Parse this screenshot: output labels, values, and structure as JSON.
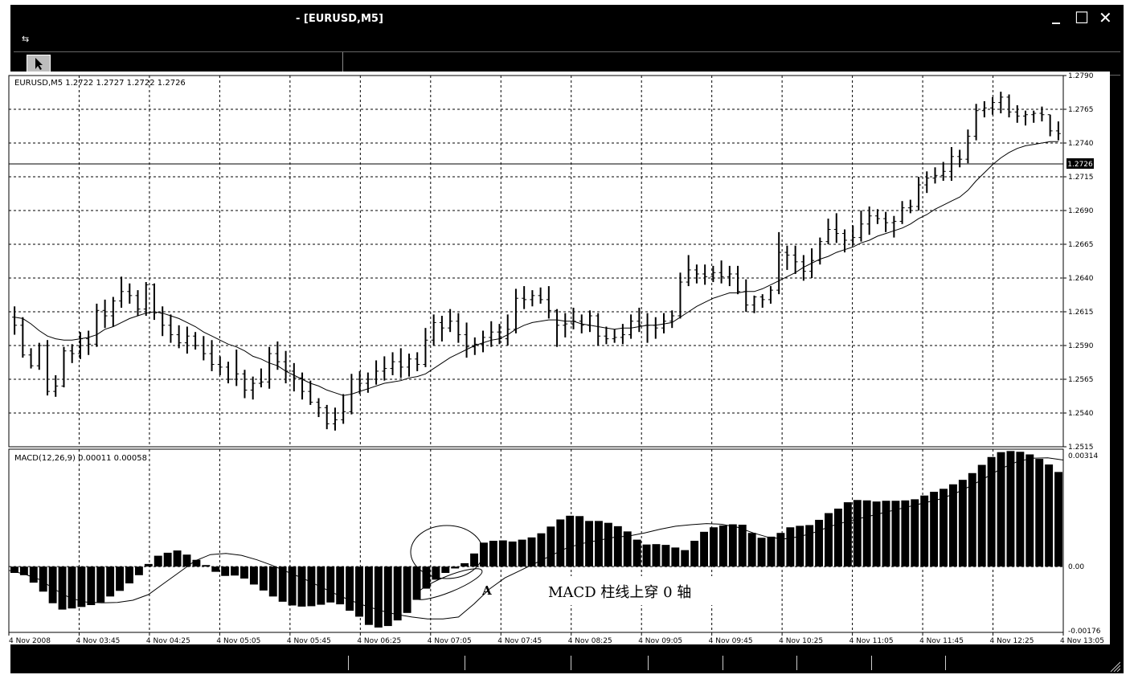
{
  "window": {
    "title": "- [EURUSD,M5]",
    "controls": {
      "minimize": "_",
      "maximize": "☐",
      "close": "✕"
    }
  },
  "price_panel": {
    "label": "EURUSD,M5  1.2722 1.2727 1.2722 1.2726",
    "current_price": "1.2726",
    "y_ticks": [
      "1.2790",
      "1.2765",
      "1.2740",
      "1.2715",
      "1.2690",
      "1.2665",
      "1.2640",
      "1.2615",
      "1.2590",
      "1.2565",
      "1.2540",
      "1.2515"
    ]
  },
  "macd_panel": {
    "label": "MACD(12,26,9) 0.00011 0.00058",
    "y_ticks": [
      "0.00314",
      "0.00",
      "-0.00176"
    ]
  },
  "x_ticks": [
    "4 Nov 2008",
    "4 Nov 03:45",
    "4 Nov 04:25",
    "4 Nov 05:05",
    "4 Nov 05:45",
    "4 Nov 06:25",
    "4 Nov 07:05",
    "4 Nov 07:45",
    "4 Nov 08:25",
    "4 Nov 09:05",
    "4 Nov 09:45",
    "4 Nov 10:25",
    "4 Nov 11:05",
    "4 Nov 11:45",
    "4 Nov 12:25",
    "4 Nov 13:05"
  ],
  "annotation": {
    "marker": "A",
    "text": "MACD 柱线上穿 0 轴"
  },
  "chart_data": [
    {
      "type": "ohlc",
      "title": "EURUSD,M5",
      "ylim": [
        1.2515,
        1.279
      ],
      "bars": [
        [
          1.2611,
          1.2619,
          1.2598,
          1.2605
        ],
        [
          1.2605,
          1.2611,
          1.2581,
          1.2583
        ],
        [
          1.2583,
          1.2588,
          1.2573,
          1.2575
        ],
        [
          1.2575,
          1.2592,
          1.2572,
          1.259
        ],
        [
          1.259,
          1.2594,
          1.2553,
          1.2556
        ],
        [
          1.2556,
          1.2568,
          1.2552,
          1.256
        ],
        [
          1.256,
          1.2589,
          1.2559,
          1.2586
        ],
        [
          1.2586,
          1.2591,
          1.2577,
          1.2584
        ],
        [
          1.2584,
          1.26,
          1.258,
          1.2595
        ],
        [
          1.2595,
          1.2601,
          1.2583,
          1.2591
        ],
        [
          1.2591,
          1.2621,
          1.2589,
          1.2616
        ],
        [
          1.2616,
          1.2624,
          1.2603,
          1.2612
        ],
        [
          1.2612,
          1.2626,
          1.2604,
          1.2623
        ],
        [
          1.2623,
          1.2641,
          1.2618,
          1.263
        ],
        [
          1.263,
          1.2636,
          1.2621,
          1.2627
        ],
        [
          1.2627,
          1.2631,
          1.2612,
          1.2617
        ],
        [
          1.2617,
          1.2637,
          1.2612,
          1.2635
        ],
        [
          1.2635,
          1.2636,
          1.2609,
          1.2614
        ],
        [
          1.2614,
          1.2619,
          1.2597,
          1.2605
        ],
        [
          1.2605,
          1.2613,
          1.2592,
          1.2598
        ],
        [
          1.2598,
          1.2605,
          1.2588,
          1.2592
        ],
        [
          1.2592,
          1.2604,
          1.2584,
          1.2597
        ],
        [
          1.2597,
          1.26,
          1.2587,
          1.259
        ],
        [
          1.259,
          1.2597,
          1.2579,
          1.2584
        ],
        [
          1.2584,
          1.2594,
          1.2571,
          1.2576
        ],
        [
          1.2576,
          1.2582,
          1.2568,
          1.2574
        ],
        [
          1.2574,
          1.2578,
          1.2562,
          1.2565
        ],
        [
          1.2565,
          1.2587,
          1.256,
          1.2569
        ],
        [
          1.2569,
          1.2572,
          1.2551,
          1.2557
        ],
        [
          1.2557,
          1.2567,
          1.255,
          1.2562
        ],
        [
          1.2562,
          1.2573,
          1.2559,
          1.2563
        ],
        [
          1.2563,
          1.2589,
          1.2558,
          1.2584
        ],
        [
          1.2584,
          1.2593,
          1.2572,
          1.2578
        ],
        [
          1.2578,
          1.2586,
          1.2562,
          1.2571
        ],
        [
          1.2571,
          1.2577,
          1.2556,
          1.2566
        ],
        [
          1.2566,
          1.257,
          1.255,
          1.2556
        ],
        [
          1.2556,
          1.2564,
          1.2546,
          1.2548
        ],
        [
          1.2548,
          1.2551,
          1.2537,
          1.2544
        ],
        [
          1.2544,
          1.2546,
          1.2528,
          1.2532
        ],
        [
          1.2532,
          1.2544,
          1.2527,
          1.2535
        ],
        [
          1.2535,
          1.2554,
          1.2532,
          1.2541
        ],
        [
          1.2541,
          1.2569,
          1.2539,
          1.2565
        ],
        [
          1.2565,
          1.2571,
          1.2554,
          1.2562
        ],
        [
          1.2562,
          1.257,
          1.2555,
          1.2565
        ],
        [
          1.2565,
          1.2579,
          1.2561,
          1.2571
        ],
        [
          1.2571,
          1.2582,
          1.2564,
          1.2573
        ],
        [
          1.2573,
          1.2585,
          1.2568,
          1.2578
        ],
        [
          1.2578,
          1.2588,
          1.2566,
          1.2574
        ],
        [
          1.2574,
          1.2584,
          1.2567,
          1.258
        ],
        [
          1.258,
          1.2585,
          1.2571,
          1.2576
        ],
        [
          1.2576,
          1.2603,
          1.2574,
          1.2594
        ],
        [
          1.2594,
          1.2613,
          1.259,
          1.2607
        ],
        [
          1.2607,
          1.2612,
          1.2593,
          1.2603
        ],
        [
          1.2603,
          1.2617,
          1.26,
          1.2608
        ],
        [
          1.2608,
          1.2614,
          1.2592,
          1.2598
        ],
        [
          1.2598,
          1.2607,
          1.2581,
          1.2589
        ],
        [
          1.2589,
          1.2596,
          1.2583,
          1.2591
        ],
        [
          1.2591,
          1.2601,
          1.2585,
          1.2596
        ],
        [
          1.2596,
          1.2608,
          1.2589,
          1.26
        ],
        [
          1.26,
          1.2606,
          1.2591,
          1.2595
        ],
        [
          1.2595,
          1.2613,
          1.259,
          1.2602
        ],
        [
          1.2602,
          1.2632,
          1.2599,
          1.2625
        ],
        [
          1.2625,
          1.2634,
          1.2617,
          1.2624
        ],
        [
          1.2624,
          1.2631,
          1.2619,
          1.2627
        ],
        [
          1.2627,
          1.2633,
          1.2621,
          1.2624
        ],
        [
          1.2624,
          1.2634,
          1.261,
          1.2616
        ],
        [
          1.2616,
          1.2617,
          1.2589,
          1.2605
        ],
        [
          1.2605,
          1.2614,
          1.2596,
          1.2606
        ],
        [
          1.2606,
          1.2618,
          1.2602,
          1.2608
        ],
        [
          1.2608,
          1.2613,
          1.2599,
          1.2605
        ],
        [
          1.2605,
          1.2616,
          1.26,
          1.2612
        ],
        [
          1.2612,
          1.2614,
          1.259,
          1.2597
        ],
        [
          1.2597,
          1.2604,
          1.2591,
          1.2595
        ],
        [
          1.2595,
          1.2602,
          1.2592,
          1.2596
        ],
        [
          1.2596,
          1.2606,
          1.2591,
          1.2598
        ],
        [
          1.2598,
          1.2613,
          1.2595,
          1.2608
        ],
        [
          1.2608,
          1.2618,
          1.26,
          1.2605
        ],
        [
          1.2605,
          1.2614,
          1.2592,
          1.2605
        ],
        [
          1.2605,
          1.2611,
          1.2595,
          1.2603
        ],
        [
          1.2603,
          1.2614,
          1.2599,
          1.2608
        ],
        [
          1.2608,
          1.2616,
          1.2603,
          1.2612
        ],
        [
          1.2612,
          1.2644,
          1.261,
          1.2637
        ],
        [
          1.2637,
          1.2657,
          1.2634,
          1.2646
        ],
        [
          1.2646,
          1.265,
          1.2636,
          1.2643
        ],
        [
          1.2643,
          1.265,
          1.2635,
          1.2641
        ],
        [
          1.2641,
          1.2649,
          1.2637,
          1.2644
        ],
        [
          1.2644,
          1.2653,
          1.2636,
          1.2641
        ],
        [
          1.2641,
          1.2649,
          1.2634,
          1.2643
        ],
        [
          1.2643,
          1.2649,
          1.2628,
          1.263
        ],
        [
          1.263,
          1.2639,
          1.2615,
          1.262
        ],
        [
          1.262,
          1.2627,
          1.2614,
          1.2626
        ],
        [
          1.2626,
          1.2628,
          1.2618,
          1.2624
        ],
        [
          1.2624,
          1.2634,
          1.2621,
          1.2631
        ],
        [
          1.2631,
          1.2674,
          1.2628,
          1.2659
        ],
        [
          1.2659,
          1.2664,
          1.2646,
          1.2657
        ],
        [
          1.2657,
          1.2664,
          1.2643,
          1.2652
        ],
        [
          1.2652,
          1.2657,
          1.2638,
          1.2645
        ],
        [
          1.2645,
          1.2662,
          1.264,
          1.2653
        ],
        [
          1.2653,
          1.267,
          1.265,
          1.2667
        ],
        [
          1.2667,
          1.2684,
          1.2665,
          1.2676
        ],
        [
          1.2676,
          1.2688,
          1.2666,
          1.2673
        ],
        [
          1.2673,
          1.2676,
          1.2659,
          1.2668
        ],
        [
          1.2668,
          1.2679,
          1.2664,
          1.267
        ],
        [
          1.267,
          1.269,
          1.2667,
          1.268
        ],
        [
          1.268,
          1.2693,
          1.2672,
          1.2686
        ],
        [
          1.2686,
          1.2691,
          1.268,
          1.2684
        ],
        [
          1.2684,
          1.2689,
          1.2674,
          1.2681
        ],
        [
          1.2681,
          1.2686,
          1.267,
          1.2682
        ],
        [
          1.2682,
          1.2697,
          1.268,
          1.2692
        ],
        [
          1.2692,
          1.2698,
          1.2688,
          1.2693
        ],
        [
          1.2693,
          1.2715,
          1.269,
          1.2709
        ],
        [
          1.2709,
          1.2719,
          1.2703,
          1.2714
        ],
        [
          1.2714,
          1.2722,
          1.271,
          1.2716
        ],
        [
          1.2716,
          1.2726,
          1.2712,
          1.2719
        ],
        [
          1.2719,
          1.2737,
          1.2712,
          1.273
        ],
        [
          1.273,
          1.2735,
          1.2722,
          1.2728
        ],
        [
          1.2728,
          1.275,
          1.2725,
          1.2745
        ],
        [
          1.2745,
          1.2769,
          1.2742,
          1.2764
        ],
        [
          1.2764,
          1.2771,
          1.2759,
          1.2766
        ],
        [
          1.2766,
          1.2774,
          1.2761,
          1.277
        ],
        [
          1.277,
          1.2778,
          1.2762,
          1.2774
        ],
        [
          1.2774,
          1.2776,
          1.2759,
          1.2763
        ],
        [
          1.2763,
          1.2768,
          1.2755,
          1.276
        ],
        [
          1.276,
          1.2764,
          1.2753,
          1.2761
        ],
        [
          1.2761,
          1.2764,
          1.2755,
          1.2762
        ],
        [
          1.2762,
          1.2767,
          1.2756,
          1.2761
        ],
        [
          1.2761,
          1.2761,
          1.2745,
          1.2749
        ],
        [
          1.2749,
          1.2756,
          1.2742,
          1.2747
        ]
      ],
      "ma": [
        1.2611,
        1.261,
        1.2606,
        1.2601,
        1.2597,
        1.2595,
        1.2594,
        1.2594,
        1.2595,
        1.2596,
        1.2598,
        1.2602,
        1.2604,
        1.2607,
        1.261,
        1.2612,
        1.2614,
        1.2615,
        1.2614,
        1.2612,
        1.261,
        1.2607,
        1.2604,
        1.26,
        1.2597,
        1.2594,
        1.2591,
        1.2589,
        1.2586,
        1.2582,
        1.258,
        1.2577,
        1.2575,
        1.2571,
        1.2568,
        1.2565,
        1.2562,
        1.256,
        1.2557,
        1.2555,
        1.2553,
        1.2554,
        1.2556,
        1.2558,
        1.256,
        1.2562,
        1.2563,
        1.2564,
        1.2566,
        1.2567,
        1.2569,
        1.2573,
        1.2577,
        1.2581,
        1.2584,
        1.2587,
        1.259,
        1.2592,
        1.2594,
        1.2595,
        1.2598,
        1.2602,
        1.2605,
        1.2607,
        1.2608,
        1.2609,
        1.2609,
        1.2608,
        1.2608,
        1.2606,
        1.2605,
        1.2604,
        1.2603,
        1.2602,
        1.2603,
        1.2603,
        1.2604,
        1.2605,
        1.2605,
        1.2606,
        1.2607,
        1.2611,
        1.2615,
        1.2619,
        1.2622,
        1.2625,
        1.2627,
        1.2629,
        1.2629,
        1.263,
        1.263,
        1.2632,
        1.2635,
        1.2638,
        1.2641,
        1.2644,
        1.2648,
        1.2651,
        1.2654,
        1.2656,
        1.2659,
        1.2661,
        1.2663,
        1.2666,
        1.2668,
        1.2671,
        1.2673,
        1.2675,
        1.2677,
        1.268,
        1.2684,
        1.2687,
        1.2691,
        1.2694,
        1.2697,
        1.27,
        1.2705,
        1.2712,
        1.2718,
        1.2724,
        1.2729,
        1.2733,
        1.2736,
        1.2738,
        1.2739,
        1.274,
        1.2741,
        1.2741
      ]
    },
    {
      "type": "bar",
      "title": "MACD(12,26,9)",
      "ylim": [
        -0.00176,
        0.00314
      ],
      "histogram": [
        -0.00017,
        -0.00023,
        -0.00043,
        -0.00067,
        -0.00098,
        -0.00115,
        -0.00112,
        -0.00108,
        -0.00103,
        -0.00096,
        -0.0008,
        -0.00065,
        -0.00045,
        -0.00023,
        7e-05,
        0.00029,
        0.00037,
        0.00043,
        0.00032,
        0.00018,
        4e-05,
        -0.00014,
        -0.00025,
        -0.00024,
        -0.00032,
        -0.00048,
        -0.00064,
        -0.0008,
        -0.00094,
        -0.00104,
        -0.00107,
        -0.00106,
        -0.00102,
        -0.00096,
        -0.00101,
        -0.00118,
        -0.00134,
        -0.00156,
        -0.00163,
        -0.00159,
        -0.00144,
        -0.00124,
        -0.00089,
        -0.00059,
        -0.00035,
        -0.00017,
        -5e-05,
        9e-05,
        0.00035,
        0.00064,
        0.00069,
        0.0007,
        0.00067,
        0.00072,
        0.00078,
        0.00089,
        0.00107,
        0.00126,
        0.00136,
        0.00135,
        0.00122,
        0.00122,
        0.00117,
        0.00108,
        0.00094,
        0.00072,
        0.00059,
        0.0006,
        0.00058,
        0.00051,
        0.00044,
        0.00069,
        0.00093,
        0.00105,
        0.0011,
        0.00113,
        0.00112,
        0.0009,
        0.00077,
        0.0008,
        0.0009,
        0.00105,
        0.00109,
        0.00111,
        0.00125,
        0.00143,
        0.00155,
        0.00172,
        0.00178,
        0.00177,
        0.00174,
        0.00176,
        0.00176,
        0.00177,
        0.0018,
        0.0019,
        0.002,
        0.00208,
        0.0022,
        0.00232,
        0.0025,
        0.00272,
        0.00293,
        0.00306,
        0.00309,
        0.00307,
        0.003,
        0.00288,
        0.00273,
        0.00253
      ],
      "signal": [
        -0.0001,
        -0.0002,
        -0.00035,
        -0.00062,
        -0.00085,
        -0.00095,
        -0.00097,
        -0.00096,
        -0.0009,
        -0.00075,
        -0.00045,
        -0.00015,
        0.00015,
        0.00032,
        0.00035,
        0.0003,
        0.00018,
        3e-05,
        -0.00015,
        -0.00032,
        -0.00052,
        -0.00072,
        -0.0009,
        -0.00105,
        -0.00118,
        -0.00128,
        -0.00135,
        -0.0014,
        -0.0014,
        -0.00135,
        -0.001,
        -0.0006,
        -0.0003,
        -0.0001,
        0.0001,
        0.0003,
        0.0005,
        0.00062,
        0.0007,
        0.00078,
        0.00082,
        0.0009,
        0.001,
        0.00108,
        0.00112,
        0.00115,
        0.00113,
        0.00105,
        0.0009,
        0.00078,
        0.00074,
        0.0008,
        0.00092,
        0.00108,
        0.0012,
        0.0013,
        0.0014,
        0.0015,
        0.0016,
        0.0017,
        0.0018,
        0.00195,
        0.00215,
        0.00238,
        0.00262,
        0.0028,
        0.0029,
        0.00291,
        0.00285
      ]
    }
  ]
}
